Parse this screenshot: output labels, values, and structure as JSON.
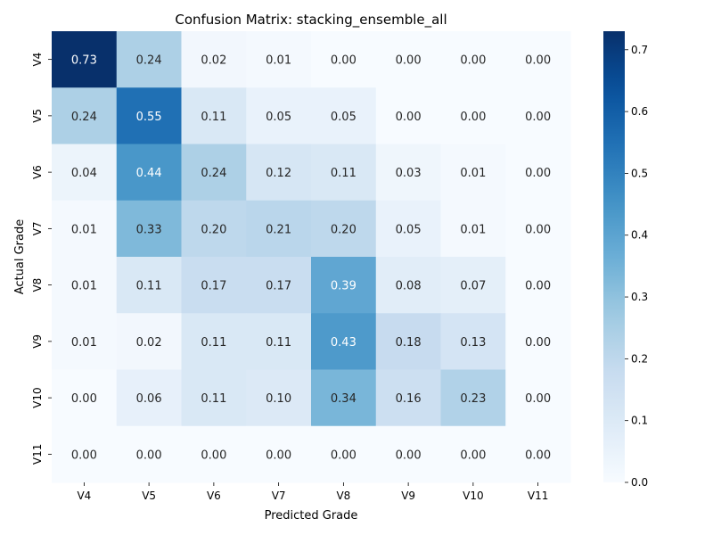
{
  "chart_data": {
    "type": "heatmap",
    "title": "Confusion Matrix: stacking_ensemble_all",
    "xlabel": "Predicted Grade",
    "ylabel": "Actual Grade",
    "x_categories": [
      "V4",
      "V5",
      "V6",
      "V7",
      "V8",
      "V9",
      "V10",
      "V11"
    ],
    "y_categories": [
      "V4",
      "V5",
      "V6",
      "V7",
      "V8",
      "V9",
      "V10",
      "V11"
    ],
    "values": [
      [
        0.73,
        0.24,
        0.02,
        0.01,
        0.0,
        0.0,
        0.0,
        0.0
      ],
      [
        0.24,
        0.55,
        0.11,
        0.05,
        0.05,
        0.0,
        0.0,
        0.0
      ],
      [
        0.04,
        0.44,
        0.24,
        0.12,
        0.11,
        0.03,
        0.01,
        0.0
      ],
      [
        0.01,
        0.33,
        0.2,
        0.21,
        0.2,
        0.05,
        0.01,
        0.0
      ],
      [
        0.01,
        0.11,
        0.17,
        0.17,
        0.39,
        0.08,
        0.07,
        0.0
      ],
      [
        0.01,
        0.02,
        0.11,
        0.11,
        0.43,
        0.18,
        0.13,
        0.0
      ],
      [
        0.0,
        0.06,
        0.11,
        0.1,
        0.34,
        0.16,
        0.23,
        0.0
      ],
      [
        0.0,
        0.0,
        0.0,
        0.0,
        0.0,
        0.0,
        0.0,
        0.0
      ]
    ],
    "colorbar": {
      "colormap": "Blues",
      "range": [
        0.0,
        0.73
      ],
      "ticks": [
        0.0,
        0.1,
        0.2,
        0.3,
        0.4,
        0.5,
        0.6,
        0.7
      ],
      "tick_labels": [
        "0.0",
        "0.1",
        "0.2",
        "0.3",
        "0.4",
        "0.5",
        "0.6",
        "0.7"
      ]
    },
    "annotations": true,
    "value_format_decimals": 2,
    "grid": false
  }
}
